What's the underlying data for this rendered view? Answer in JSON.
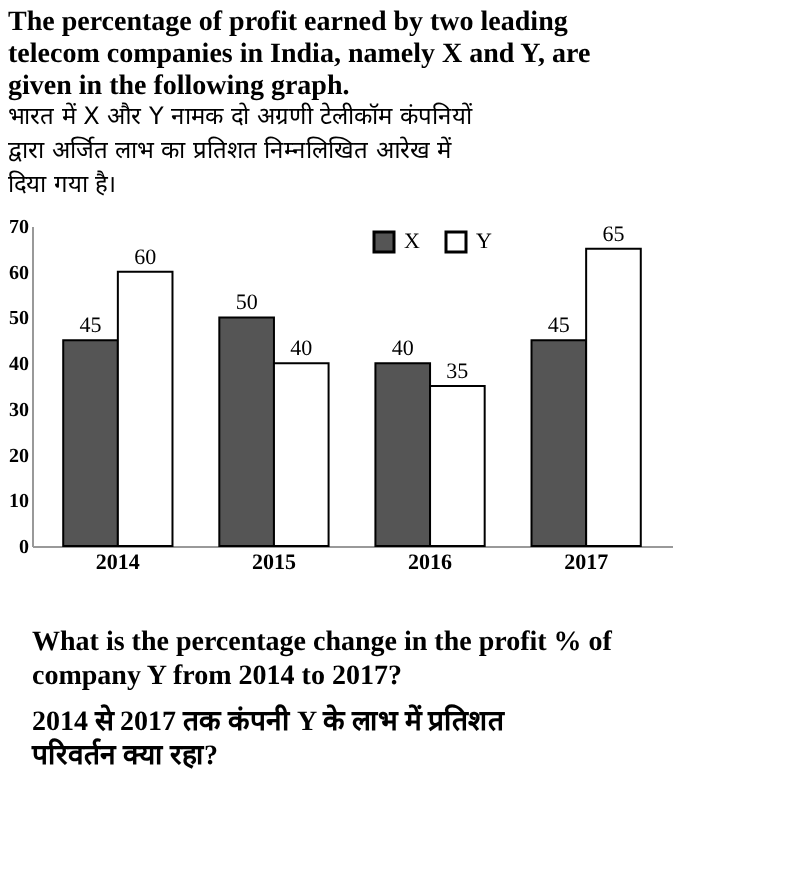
{
  "chart_data": {
    "type": "bar",
    "title": "The percentage of profit earned by two leading telecom companies in India, namely X and Y, are given in the following graph.",
    "subtitle": "भारत में X और Y नामक दो अग्रणी टेलीकॉम कंपनियों द्वारा अर्जित लाभ का प्रतिशत निम्नलिखित आरेख में दिया गया है।",
    "categories": [
      "2014",
      "2015",
      "2016",
      "2017"
    ],
    "series": [
      {
        "name": "X",
        "color": "#555555",
        "values": [
          45,
          50,
          40,
          45
        ]
      },
      {
        "name": "Y",
        "color": "#ffffff",
        "values": [
          60,
          40,
          35,
          65
        ]
      }
    ],
    "ylim": [
      0,
      70
    ],
    "yticks": [
      0,
      10,
      20,
      30,
      40,
      50,
      60,
      70
    ],
    "grid": false,
    "legend": "top right",
    "data_labels": true,
    "annotations": [
      "What is the percentage change in the profit % of company Y from 2014 to 2017?",
      "2014 से 2017 तक कंपनी Y के लाभ में प्रतिशत परिवर्तन क्या रहा?"
    ]
  }
}
